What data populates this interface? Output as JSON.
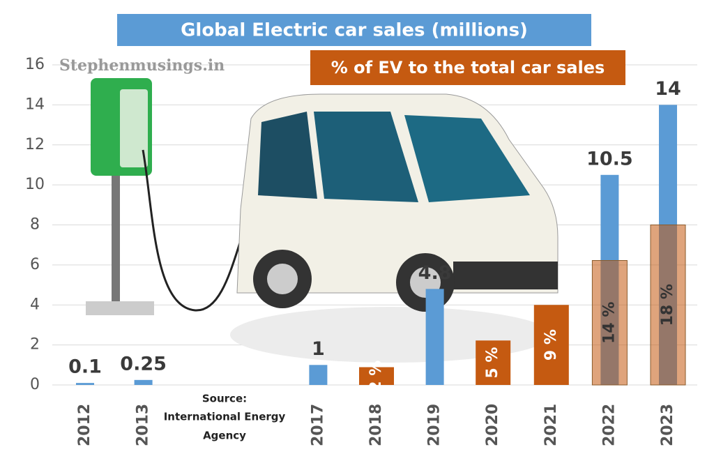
{
  "chart_data": {
    "type": "bar",
    "watermark": "Stephenmusings.in",
    "source": [
      "Source:",
      "International Energy",
      "Agency"
    ],
    "categories": [
      "2012",
      "2013",
      null,
      null,
      "2017",
      "2018",
      "2019",
      "2020",
      "2021",
      "2022",
      "2023"
    ],
    "series": [
      {
        "name": "Global Electric car sales (millions)",
        "color": "#5b9bd5",
        "values": [
          0.1,
          0.25,
          null,
          null,
          1,
          null,
          4.8,
          null,
          null,
          10.5,
          14
        ]
      },
      {
        "name": "% of EV to the total car sales",
        "color": "#c55a11",
        "axis": "y2",
        "values": [
          null,
          null,
          null,
          null,
          null,
          2,
          null,
          5,
          9,
          14,
          18
        ],
        "value_labels": [
          null,
          null,
          null,
          null,
          null,
          "2 %",
          null,
          "5 %",
          "9 %",
          "14 %",
          "18 %"
        ]
      }
    ],
    "ylim": [
      0,
      16
    ],
    "yticks": [
      0,
      2,
      4,
      6,
      8,
      10,
      12,
      14,
      16
    ],
    "y2lim": [
      0,
      36
    ],
    "grid": true
  }
}
